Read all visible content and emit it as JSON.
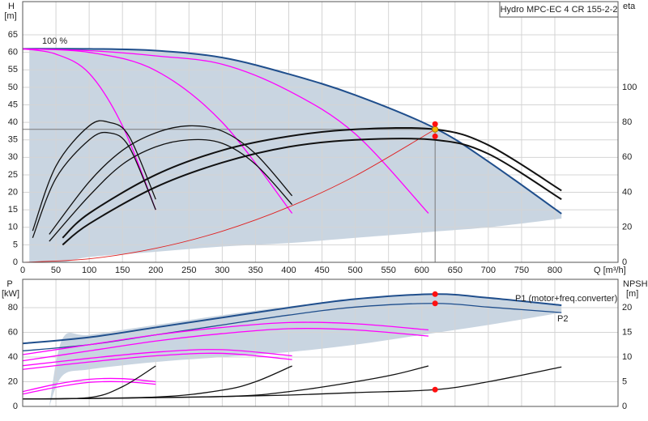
{
  "chart_data": [
    {
      "type": "line",
      "title": "Hydro MPC-EC 4 CR 155-2-2",
      "ylabel": "H",
      "yunit": "[m]",
      "y2label": "eta",
      "xlabel": "Q [m³/h]",
      "annotations": [
        "100 %"
      ],
      "xlim": [
        0,
        895
      ],
      "xticks": [
        0,
        50,
        100,
        150,
        200,
        250,
        300,
        350,
        400,
        450,
        500,
        550,
        600,
        650,
        700,
        750,
        800
      ],
      "ylim": [
        0,
        74.5
      ],
      "yticks": [
        0,
        5,
        10,
        15,
        20,
        25,
        30,
        35,
        40,
        45,
        50,
        55,
        60,
        65
      ],
      "y2lim": [
        0,
        149
      ],
      "y2ticks": [
        0,
        20,
        40,
        60,
        80,
        100
      ],
      "grid": true,
      "area": {
        "color": "#c9d5e1",
        "x": [
          10,
          60,
          100,
          200,
          300,
          400,
          500,
          620,
          700,
          810
        ],
        "upper": [
          61,
          61,
          61,
          60.5,
          58.5,
          53.8,
          47.8,
          38.3,
          28.8,
          13.9
        ],
        "lower": [
          0,
          0,
          1.5,
          3,
          4.5,
          5.5,
          7,
          8.8,
          10,
          12.5
        ]
      },
      "series": [
        {
          "color": "#1f4e8c",
          "weight": "bold",
          "x": [
            0,
            100,
            200,
            300,
            400,
            500,
            620,
            700,
            810
          ],
          "values": [
            61,
            61,
            60.5,
            58.5,
            53.8,
            47.8,
            38.3,
            28.8,
            13.9
          ]
        },
        {
          "color": "#ff00ff",
          "weight": "normal",
          "x": [
            0,
            50,
            100,
            150,
            200
          ],
          "values": [
            61,
            59.5,
            54,
            39,
            15
          ]
        },
        {
          "color": "#ff00ff",
          "weight": "normal",
          "x": [
            0,
            100,
            200,
            300,
            405
          ],
          "values": [
            61,
            60,
            54.8,
            40,
            14
          ]
        },
        {
          "color": "#ff00ff",
          "weight": "normal",
          "x": [
            0,
            100,
            200,
            300,
            400,
            500,
            610
          ],
          "values": [
            61,
            60.5,
            59,
            56.6,
            49,
            36.7,
            14
          ]
        },
        {
          "color": "#e02020",
          "weight": "thin",
          "x": [
            0,
            100,
            200,
            300,
            400,
            500,
            620
          ],
          "values": [
            0,
            1,
            4,
            8.9,
            15.8,
            24.7,
            38
          ]
        },
        {
          "color": "#111111",
          "weight": "normal",
          "axis": "y2",
          "x": [
            15,
            50,
            100,
            130,
            160,
            200
          ],
          "values": [
            18,
            55,
            78,
            80,
            72,
            36
          ]
        },
        {
          "color": "#111111",
          "weight": "normal",
          "axis": "y2",
          "x": [
            15,
            50,
            100,
            130,
            160,
            200
          ],
          "values": [
            14,
            48,
            70,
            74,
            66,
            30
          ]
        },
        {
          "color": "#111111",
          "weight": "normal",
          "axis": "y2",
          "x": [
            40,
            100,
            150,
            200,
            250,
            300,
            350,
            405
          ],
          "values": [
            16,
            46,
            64,
            74,
            78,
            75,
            62,
            38
          ]
        },
        {
          "color": "#111111",
          "weight": "normal",
          "axis": "y2",
          "x": [
            40,
            100,
            150,
            200,
            250,
            300,
            350,
            405
          ],
          "values": [
            12,
            38,
            56,
            66,
            70,
            68,
            56,
            33
          ]
        },
        {
          "color": "#111111",
          "weight": "bold",
          "axis": "y2",
          "x": [
            60,
            100,
            200,
            300,
            400,
            500,
            620,
            700,
            810
          ],
          "values": [
            14,
            28,
            50,
            64,
            72,
            76,
            76,
            67,
            41
          ]
        },
        {
          "color": "#111111",
          "weight": "bold",
          "axis": "y2",
          "x": [
            60,
            100,
            200,
            300,
            400,
            500,
            620,
            700,
            810
          ],
          "values": [
            10,
            22,
            43,
            57,
            66,
            70,
            70,
            62,
            36
          ]
        }
      ],
      "points": [
        {
          "x": 620,
          "value": 38,
          "color": "#f5b800",
          "guides": true
        },
        {
          "x": 620,
          "value": 79,
          "color": "#ff1010",
          "axis": "y2"
        },
        {
          "x": 620,
          "value": 72,
          "color": "#ff1010",
          "axis": "y2"
        }
      ]
    },
    {
      "type": "line",
      "ylabel": "P",
      "yunit": "[kW]",
      "y2label": "NPSH",
      "y2unit": "[m]",
      "xlim": [
        0,
        895
      ],
      "ylim": [
        0,
        103
      ],
      "yticks": [
        0,
        20,
        40,
        60,
        80
      ],
      "y2lim": [
        0,
        25.75
      ],
      "y2ticks": [
        0,
        5,
        10,
        15,
        20
      ],
      "grid": true,
      "area": {
        "color": "#c9d5e1",
        "x": [
          40,
          60,
          100,
          200,
          300,
          400,
          500,
          600,
          700,
          810
        ],
        "upper": [
          0,
          55,
          58,
          66,
          74,
          81,
          87,
          90.5,
          88,
          82
        ],
        "lower": [
          0,
          25,
          30,
          36,
          40,
          44,
          50,
          58,
          66,
          76
        ]
      },
      "series": [
        {
          "name": "P1 (motor+freq.converter)",
          "color": "#1f4e8c",
          "weight": "bold",
          "x": [
            0,
            100,
            200,
            300,
            400,
            500,
            620,
            700,
            810
          ],
          "values": [
            51,
            56,
            64,
            72,
            80,
            87,
            91,
            88,
            82
          ]
        },
        {
          "name": "P2",
          "color": "#1f4e8c",
          "weight": "normal",
          "x": [
            0,
            100,
            200,
            300,
            400,
            500,
            620,
            700,
            810
          ],
          "values": [
            45,
            50,
            58,
            66,
            74,
            80.5,
            83.5,
            80.5,
            76
          ]
        },
        {
          "color": "#ff00ff",
          "weight": "normal",
          "x": [
            0,
            100,
            200,
            300,
            400,
            500,
            610
          ],
          "values": [
            42,
            50,
            58,
            64,
            68,
            67,
            62
          ]
        },
        {
          "color": "#ff00ff",
          "weight": "normal",
          "x": [
            0,
            100,
            200,
            300,
            400,
            500,
            610
          ],
          "values": [
            37,
            45,
            53,
            59,
            63,
            62,
            57
          ]
        },
        {
          "color": "#ff00ff",
          "weight": "normal",
          "x": [
            0,
            100,
            200,
            300,
            405
          ],
          "values": [
            33,
            39,
            44,
            46,
            41
          ]
        },
        {
          "color": "#ff00ff",
          "weight": "normal",
          "x": [
            0,
            100,
            200,
            300,
            405
          ],
          "values": [
            30,
            36,
            41,
            43,
            38
          ]
        },
        {
          "color": "#ff00ff",
          "weight": "normal",
          "x": [
            0,
            50,
            100,
            150,
            200
          ],
          "values": [
            12,
            18,
            22,
            22.5,
            20
          ]
        },
        {
          "color": "#ff00ff",
          "weight": "normal",
          "x": [
            0,
            50,
            100,
            150,
            200
          ],
          "values": [
            10,
            15.5,
            19.5,
            20,
            18
          ]
        },
        {
          "color": "#111111",
          "weight": "normal",
          "axis": "y2",
          "x": [
            0,
            100,
            150,
            200
          ],
          "values": [
            1.5,
            1.8,
            4,
            8.2
          ]
        },
        {
          "color": "#111111",
          "weight": "normal",
          "axis": "y2",
          "x": [
            0,
            200,
            300,
            350,
            405
          ],
          "values": [
            1.5,
            1.9,
            3.3,
            5,
            8.2
          ]
        },
        {
          "color": "#111111",
          "weight": "normal",
          "axis": "y2",
          "x": [
            0,
            300,
            400,
            500,
            560,
            610
          ],
          "values": [
            1.5,
            2,
            3,
            5,
            6.5,
            8.2
          ]
        },
        {
          "color": "#111111",
          "weight": "normal",
          "axis": "y2",
          "x": [
            0,
            100,
            200,
            300,
            400,
            500,
            620,
            700,
            810
          ],
          "values": [
            1.5,
            1.6,
            1.8,
            2,
            2.3,
            2.8,
            3.4,
            5,
            8
          ]
        }
      ],
      "points": [
        {
          "x": 620,
          "value": 91,
          "color": "#ff1010"
        },
        {
          "x": 620,
          "value": 83.5,
          "color": "#ff1010"
        },
        {
          "x": 620,
          "value": 3.4,
          "color": "#ff1010",
          "axis": "y2"
        }
      ]
    }
  ]
}
